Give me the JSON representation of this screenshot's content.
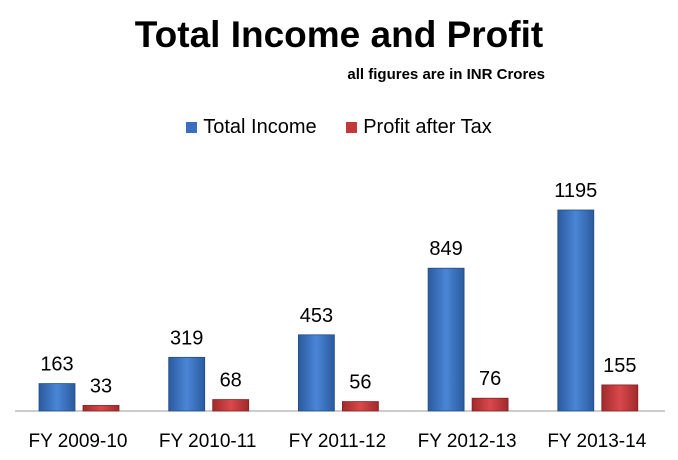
{
  "chart_data": {
    "type": "bar",
    "title": "Total Income and Profit",
    "subtitle": "all figures are in INR Crores",
    "categories": [
      "FY 2009-10",
      "FY 2010-11",
      "FY 2011-12",
      "FY 2012-13",
      "FY 2013-14"
    ],
    "series": [
      {
        "name": "Total Income",
        "color": "#3a6fbf",
        "values": [
          163,
          319,
          453,
          849,
          1195
        ]
      },
      {
        "name": "Profit after Tax",
        "color": "#c0393b",
        "values": [
          33,
          68,
          56,
          76,
          155
        ]
      }
    ],
    "xlabel": "",
    "ylabel": "",
    "ylim": [
      0,
      1195
    ],
    "grid": false,
    "legend": "top"
  }
}
